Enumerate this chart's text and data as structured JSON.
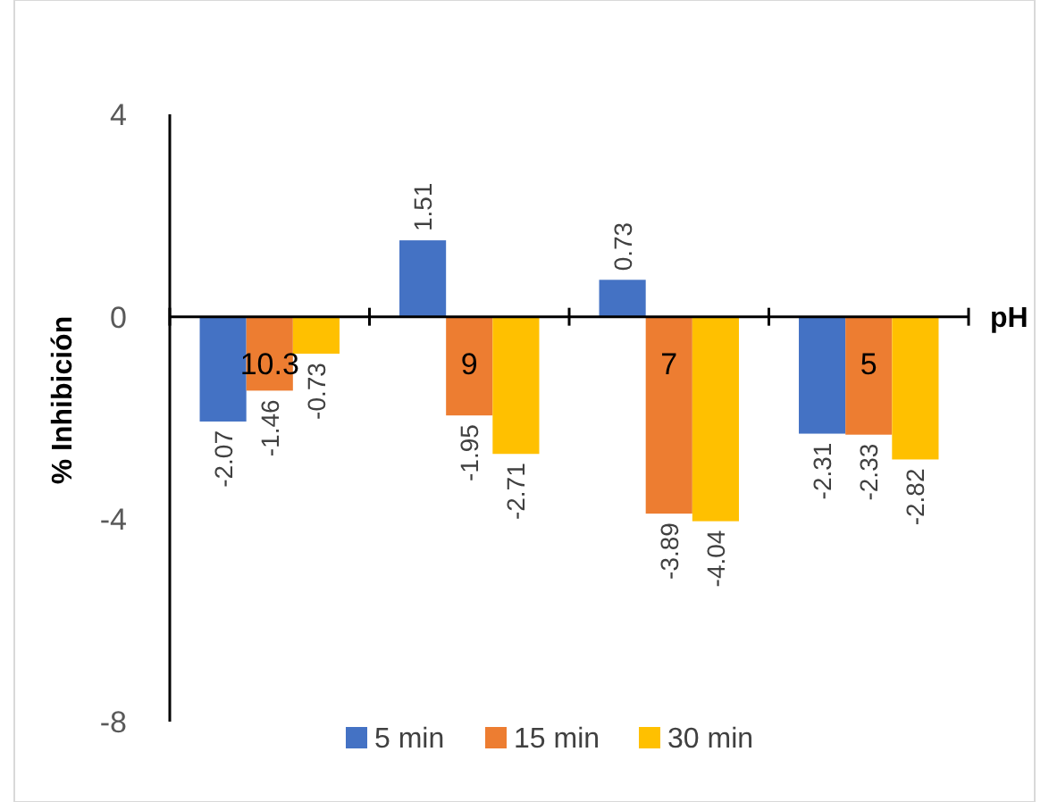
{
  "chart_data": {
    "type": "bar",
    "xlabel": "pH",
    "ylabel": "% Inhibición",
    "categories": [
      "10.3",
      "9",
      "7",
      "5"
    ],
    "series": [
      {
        "name": "5 min",
        "color": "#4472c4",
        "values": [
          -2.07,
          1.51,
          0.73,
          -2.31
        ]
      },
      {
        "name": "15 min",
        "color": "#ed7d31",
        "values": [
          -1.46,
          -1.95,
          -3.89,
          -2.33
        ]
      },
      {
        "name": "30 min",
        "color": "#ffc000",
        "values": [
          -0.73,
          -2.71,
          -4.04,
          -2.82
        ]
      }
    ],
    "ylim": [
      -8,
      4
    ],
    "yticks": [
      -8,
      -4,
      0,
      4
    ],
    "data_labels": true,
    "grid": false,
    "legend": "bottom"
  }
}
